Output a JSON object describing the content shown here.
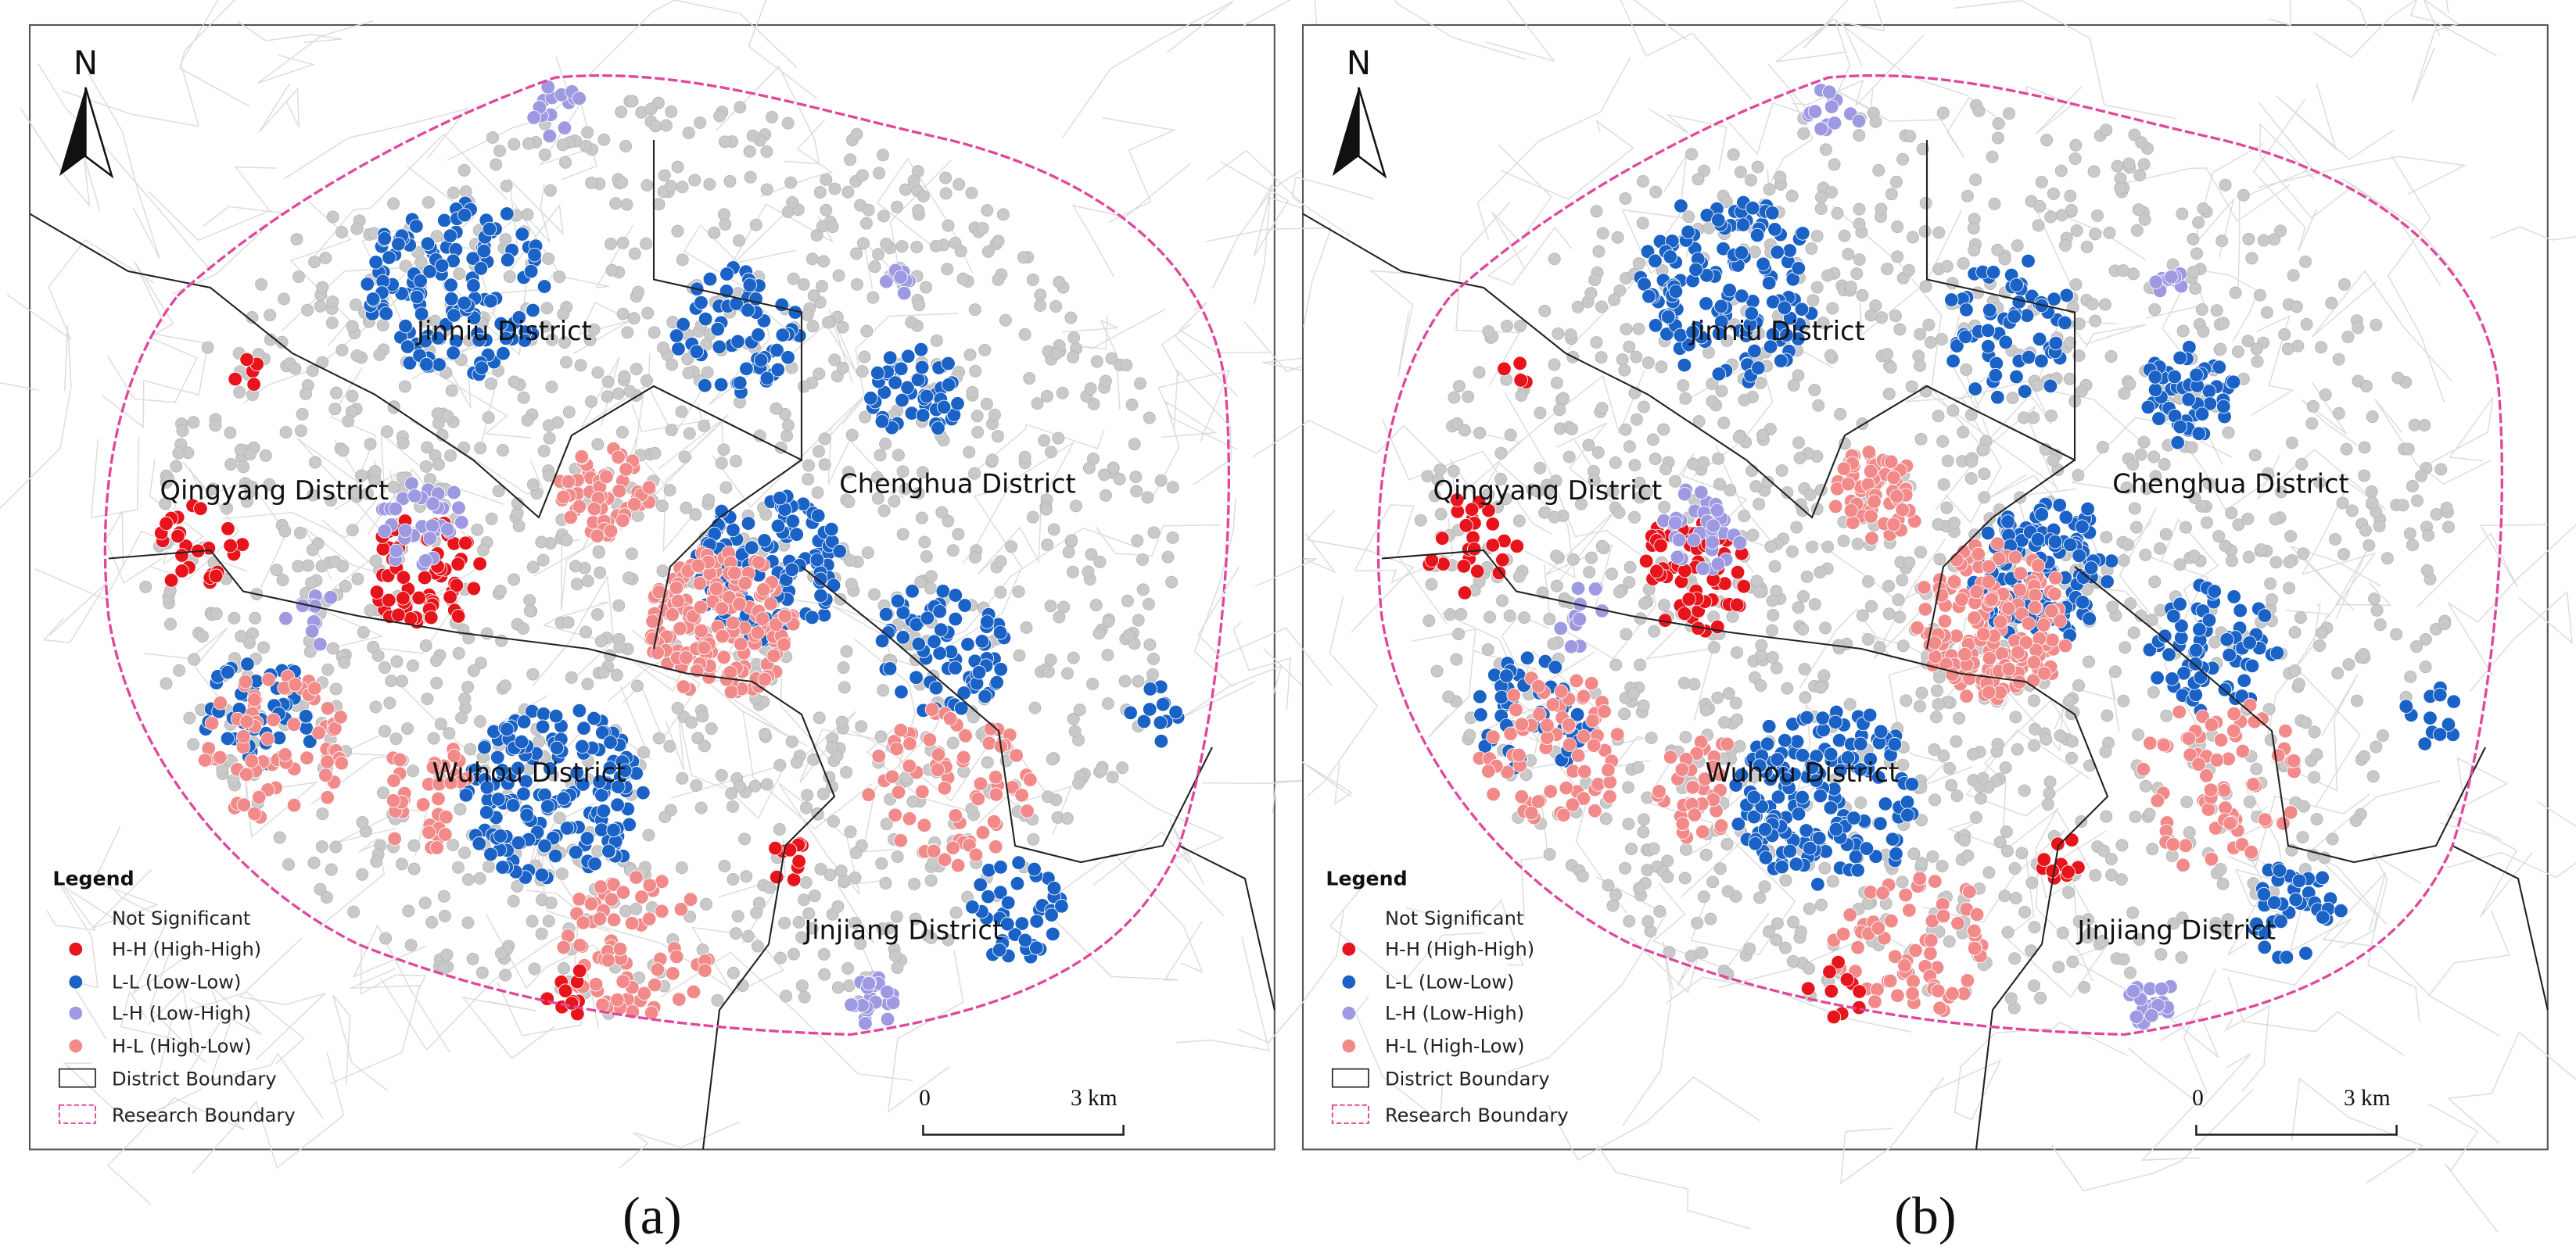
{
  "panels": [
    {
      "caption": "(a)",
      "north": "N",
      "districts": [
        "Jinniu District",
        "Qingyang District",
        "Chenghua District",
        "Wuhou District",
        "Jinjiang District"
      ],
      "legend": {
        "title": "Legend",
        "items": [
          "Not Significant",
          "H-H (High-High)",
          "L-L (Low-Low)",
          "L-H (Low-High)",
          "H-L (High-Low)",
          "District Boundary",
          "Research Boundary"
        ]
      },
      "scale": {
        "start": "0",
        "end": "3 km"
      }
    },
    {
      "caption": "(b)",
      "north": "N",
      "districts": [
        "Jinniu District",
        "Qingyang District",
        "Chenghua District",
        "Wuhou District",
        "Jinjiang District"
      ],
      "legend": {
        "title": "Legend",
        "items": [
          "Not Significant",
          "H-H (High-High)",
          "L-L (Low-Low)",
          "L-H (Low-High)",
          "H-L (High-Low)",
          "District Boundary",
          "Research Boundary"
        ]
      },
      "scale": {
        "start": "0",
        "end": "3 km"
      }
    }
  ]
}
